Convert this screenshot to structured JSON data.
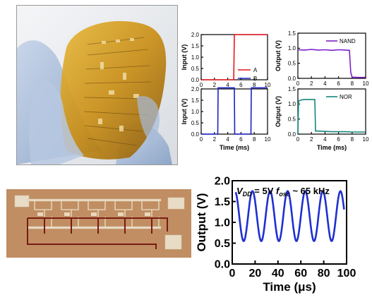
{
  "colors": {
    "A": "#e8141e",
    "B": "#1c20c8",
    "NAND": "#7a1fc8",
    "NOR": "#13867a",
    "osc": "#1f2fd0"
  },
  "photos": {
    "flexible_wafer": "flexible-wafer-in-gloved-hand",
    "ring_oscillator": "ring-oscillator-micrograph"
  },
  "chart_data": [
    {
      "type": "line",
      "ylabel": "Input (V)",
      "xlim": [
        0,
        10
      ],
      "ylim": [
        0,
        2
      ],
      "xticks": [
        "0",
        "2",
        "4",
        "6",
        "8",
        "10"
      ],
      "yticks": [
        "0.0",
        "0.5",
        "1.0",
        "1.5",
        "2.0"
      ],
      "series": [
        {
          "name": "A",
          "x": [
            0,
            4.9,
            5.0,
            10
          ],
          "y": [
            0,
            0,
            2.0,
            2.0
          ]
        }
      ],
      "legend": [
        "A",
        "B"
      ]
    },
    {
      "type": "line",
      "ylabel": "Output (V)",
      "xlim": [
        0,
        10
      ],
      "ylim": [
        0,
        1.5
      ],
      "xticks": [
        "0",
        "2",
        "4",
        "6",
        "8",
        "10"
      ],
      "yticks": [
        "0.0",
        "0.5",
        "1.0",
        "1.5"
      ],
      "series": [
        {
          "name": "NAND",
          "x": [
            0,
            1,
            2,
            3,
            4,
            5,
            6,
            7,
            7.6,
            7.8,
            8,
            9,
            10
          ],
          "y": [
            0.95,
            0.94,
            0.96,
            0.94,
            0.95,
            0.93,
            0.95,
            0.94,
            0.93,
            0.2,
            0.04,
            0.03,
            0.03
          ]
        }
      ],
      "legend": [
        "NAND"
      ]
    },
    {
      "type": "line",
      "ylabel": "Input (V)",
      "xlabel": "Time (ms)",
      "xlim": [
        0,
        10
      ],
      "ylim": [
        0,
        2
      ],
      "xticks": [
        "0",
        "2",
        "4",
        "6",
        "8",
        "10"
      ],
      "yticks": [
        "0.0",
        "0.5",
        "1.0",
        "1.5",
        "2.0"
      ],
      "series": [
        {
          "name": "B",
          "x": [
            0,
            2.5,
            2.55,
            5.0,
            5.05,
            7.5,
            7.55,
            10
          ],
          "y": [
            0,
            0,
            2.05,
            2.05,
            0,
            0,
            2.05,
            2.05
          ]
        }
      ]
    },
    {
      "type": "line",
      "ylabel": "Output (V)",
      "xlabel": "Time (ms)",
      "xlim": [
        0,
        10
      ],
      "ylim": [
        0,
        1.5
      ],
      "xticks": [
        "0",
        "2",
        "4",
        "6",
        "8",
        "10"
      ],
      "yticks": [
        "0.0",
        "0.5",
        "1.0",
        "1.5"
      ],
      "series": [
        {
          "name": "NOR",
          "x": [
            0,
            0.05,
            0.1,
            0.3,
            0.6,
            1.0,
            1.5,
            2.3,
            2.5,
            2.6,
            3,
            5,
            7,
            8,
            10
          ],
          "y": [
            0.0,
            0.6,
            1.1,
            1.12,
            1.14,
            1.15,
            1.15,
            1.15,
            1.15,
            0.1,
            0.1,
            0.08,
            0.08,
            0.07,
            0.07
          ]
        }
      ],
      "legend": [
        "NOR"
      ]
    },
    {
      "type": "line",
      "xlabel": "Time (μs)",
      "ylabel": "Output (V)",
      "xlim": [
        0,
        100
      ],
      "ylim": [
        0,
        2.0
      ],
      "xticks": [
        "0",
        "20",
        "40",
        "60",
        "80",
        "100"
      ],
      "yticks": [
        "0.0",
        "0.5",
        "1.0",
        "1.5",
        "2.0"
      ],
      "annotation": {
        "vdd_label": "V",
        "vdd_sub": "DD",
        "vdd_value": "= 5V",
        "f_label": "f",
        "f_sub": "osc",
        "f_value": "~ 65 kHz"
      },
      "series": [
        {
          "name": "",
          "frequency_khz": 65,
          "min": 0.55,
          "max": 1.75,
          "x_start": 3,
          "x_end": 98
        }
      ]
    }
  ]
}
